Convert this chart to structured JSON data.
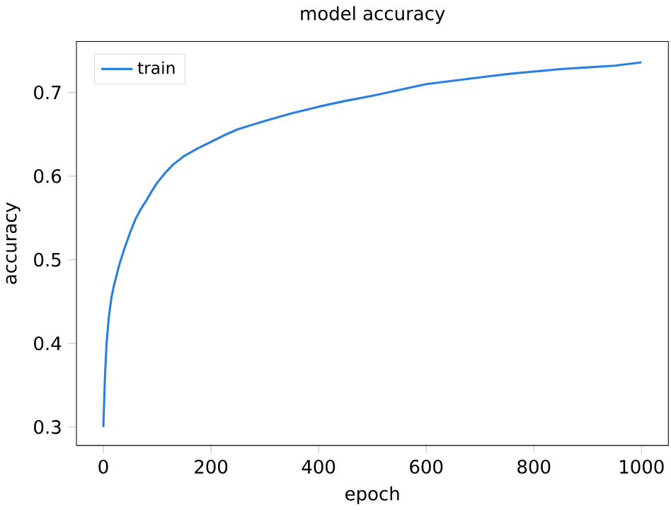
{
  "chart_data": {
    "type": "line",
    "title": "model accuracy",
    "xlabel": "epoch",
    "ylabel": "accuracy",
    "xlim": [
      -50,
      1050
    ],
    "ylim": [
      0.278,
      0.761
    ],
    "xticks": [
      {
        "value": 0,
        "label": "0"
      },
      {
        "value": 200,
        "label": "200"
      },
      {
        "value": 400,
        "label": "400"
      },
      {
        "value": 600,
        "label": "600"
      },
      {
        "value": 800,
        "label": "800"
      },
      {
        "value": 1000,
        "label": "1000"
      }
    ],
    "yticks": [
      {
        "value": 0.3,
        "label": "0.3"
      },
      {
        "value": 0.4,
        "label": "0.4"
      },
      {
        "value": 0.5,
        "label": "0.5"
      },
      {
        "value": 0.6,
        "label": "0.6"
      },
      {
        "value": 0.7,
        "label": "0.7"
      }
    ],
    "legend": "top left",
    "series": [
      {
        "name": "train",
        "color": "#2a80e0",
        "x": [
          0,
          3,
          6,
          10,
          15,
          20,
          30,
          40,
          50,
          60,
          70,
          80,
          90,
          100,
          115,
          130,
          150,
          175,
          200,
          225,
          250,
          275,
          300,
          350,
          400,
          450,
          500,
          550,
          600,
          650,
          700,
          750,
          800,
          850,
          900,
          950,
          1000
        ],
        "values": [
          0.3,
          0.36,
          0.4,
          0.43,
          0.455,
          0.47,
          0.495,
          0.515,
          0.533,
          0.549,
          0.561,
          0.571,
          0.582,
          0.592,
          0.604,
          0.614,
          0.624,
          0.633,
          0.641,
          0.649,
          0.656,
          0.661,
          0.666,
          0.675,
          0.683,
          0.69,
          0.696,
          0.703,
          0.71,
          0.714,
          0.718,
          0.722,
          0.725,
          0.728,
          0.73,
          0.732,
          0.736
        ]
      }
    ]
  }
}
